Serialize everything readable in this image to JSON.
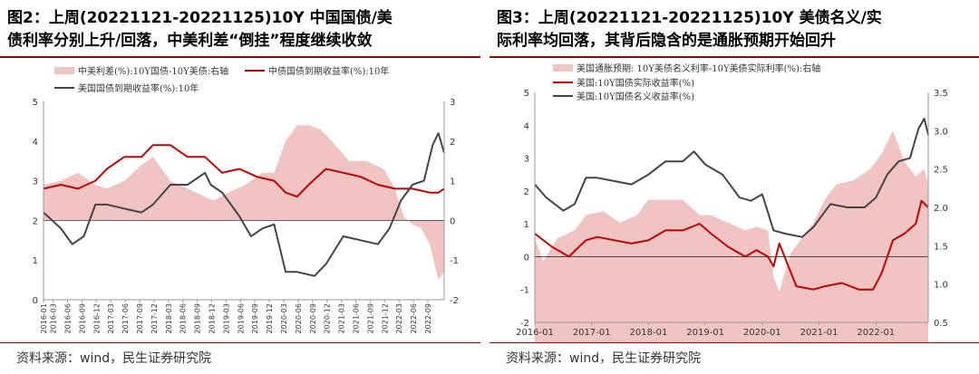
{
  "source": "资料来源：wind，民生证券研究院",
  "colors": {
    "spread": "#f1c4c4",
    "china": "#c00000",
    "us": "#444444",
    "accent": "#a00000"
  },
  "chart_data": [
    {
      "type": "line",
      "title_line1": "图2：上周(20221121-20221125)10Y 中国国债/美",
      "title_line2": "债利率分别上升/回落，中美利差“倒挂”程度继续收敛",
      "ylim_left": [
        0,
        5
      ],
      "yticks_left": [
        "0",
        "1",
        "2",
        "3",
        "4",
        "5"
      ],
      "ylim_right": [
        -2,
        3
      ],
      "yticks_right": [
        "-2",
        "-1",
        "0",
        "1",
        "2",
        "3"
      ],
      "xlim": [
        2016.0,
        2022.95
      ],
      "x_ticks": [
        "2016-01",
        "2016-03",
        "2016-06",
        "2016-09",
        "2016-12",
        "2017-03",
        "2017-06",
        "2017-09",
        "2017-12",
        "2018-03",
        "2018-06",
        "2018-09",
        "2018-12",
        "2019-03",
        "2019-06",
        "2019-09",
        "2019-12",
        "2020-03",
        "2020-06",
        "2020-09",
        "2020-12",
        "2021-03",
        "2021-06",
        "2021-09",
        "2021-12",
        "2022-03",
        "2022-06",
        "2022-09"
      ],
      "legend": [
        "中美利差(%):10Y国债-10Y美债:右轴",
        "中债国债到期收益率(%):10年",
        "美国国债到期收益率(%):10年"
      ],
      "series": [
        {
          "name": "中美利差(%):10Y国债-10Y美债:右轴",
          "axis": "right",
          "kind": "area",
          "x": [
            2016.0,
            2016.3,
            2016.6,
            2016.9,
            2017.1,
            2017.4,
            2017.7,
            2017.9,
            2018.2,
            2018.5,
            2018.8,
            2018.95,
            2019.2,
            2019.5,
            2019.8,
            2020.0,
            2020.2,
            2020.4,
            2020.6,
            2020.8,
            2021.0,
            2021.3,
            2021.6,
            2021.9,
            2022.1,
            2022.25,
            2022.4,
            2022.55,
            2022.7,
            2022.85,
            2022.95
          ],
          "y": [
            0.9,
            1.0,
            1.2,
            0.9,
            0.8,
            1.0,
            1.4,
            1.6,
            1.0,
            0.8,
            0.6,
            0.5,
            0.7,
            0.9,
            1.2,
            1.2,
            2.0,
            2.4,
            2.4,
            2.3,
            2.0,
            1.5,
            1.5,
            1.3,
            0.8,
            0.1,
            -0.1,
            -0.2,
            -0.6,
            -1.5,
            -1.3
          ]
        },
        {
          "name": "中债国债到期收益率(%):10年",
          "axis": "left",
          "x": [
            2016.0,
            2016.3,
            2016.6,
            2016.9,
            2017.1,
            2017.4,
            2017.7,
            2017.9,
            2018.2,
            2018.5,
            2018.8,
            2019.1,
            2019.4,
            2019.7,
            2020.0,
            2020.2,
            2020.4,
            2020.6,
            2020.9,
            2021.2,
            2021.5,
            2021.8,
            2022.1,
            2022.4,
            2022.7,
            2022.85,
            2022.95
          ],
          "y": [
            2.8,
            2.9,
            2.8,
            3.0,
            3.3,
            3.6,
            3.6,
            3.9,
            3.9,
            3.6,
            3.6,
            3.2,
            3.3,
            3.1,
            3.0,
            2.7,
            2.6,
            2.9,
            3.3,
            3.2,
            3.1,
            2.9,
            2.8,
            2.8,
            2.7,
            2.7,
            2.8
          ]
        },
        {
          "name": "美国国债到期收益率(%):10年",
          "axis": "left",
          "x": [
            2016.0,
            2016.3,
            2016.5,
            2016.7,
            2016.9,
            2017.1,
            2017.4,
            2017.7,
            2017.9,
            2018.2,
            2018.5,
            2018.8,
            2018.9,
            2019.1,
            2019.4,
            2019.6,
            2019.8,
            2020.0,
            2020.2,
            2020.4,
            2020.7,
            2020.9,
            2021.2,
            2021.5,
            2021.8,
            2022.0,
            2022.2,
            2022.4,
            2022.6,
            2022.75,
            2022.85,
            2022.95
          ],
          "y": [
            2.2,
            1.8,
            1.4,
            1.6,
            2.4,
            2.4,
            2.3,
            2.2,
            2.4,
            2.9,
            2.9,
            3.2,
            2.9,
            2.7,
            2.1,
            1.6,
            1.8,
            1.9,
            0.7,
            0.7,
            0.6,
            0.9,
            1.6,
            1.5,
            1.4,
            1.8,
            2.5,
            2.9,
            3.0,
            3.9,
            4.2,
            3.7
          ]
        }
      ]
    },
    {
      "type": "line",
      "title_line1": "图3：上周(20221121-20221125)10Y 美债名义/实",
      "title_line2": "际利率均回落，其背后隐含的是通胀预期开始回升",
      "ylim_left": [
        -2,
        5
      ],
      "yticks_left": [
        "-2",
        "-1",
        "0",
        "1",
        "2",
        "3",
        "4",
        "5"
      ],
      "ylim_right": [
        0.5,
        3.5
      ],
      "yticks_right": [
        "0.5",
        "1.0",
        "1.5",
        "2.0",
        "2.5",
        "3.0",
        "3.5"
      ],
      "xlim": [
        2016.0,
        2022.92
      ],
      "x_ticks": [
        "2016-01",
        "2017-01",
        "2018-01",
        "2019-01",
        "2020-01",
        "2021-01",
        "2022-01"
      ],
      "legend": [
        "美国通胀预期:  10Y美债名义利率-10Y美债实际利率(%):右轴",
        "美国:10Y国债实际收益率(%)",
        "美国:10Y国债名义收益率(%)"
      ],
      "series": [
        {
          "name": "美国通胀预期:  10Y美债名义利率-10Y美债实际利率(%):右轴",
          "axis": "right",
          "kind": "area",
          "x": [
            2016.0,
            2016.15,
            2016.4,
            2016.7,
            2016.9,
            2017.2,
            2017.5,
            2017.8,
            2018.0,
            2018.3,
            2018.6,
            2018.9,
            2019.1,
            2019.4,
            2019.7,
            2019.9,
            2020.1,
            2020.2,
            2020.3,
            2020.5,
            2020.7,
            2020.9,
            2021.1,
            2021.3,
            2021.6,
            2021.9,
            2022.1,
            2022.3,
            2022.5,
            2022.7,
            2022.85,
            2022.92
          ],
          "y": [
            1.6,
            1.3,
            1.6,
            1.7,
            1.9,
            1.95,
            1.8,
            1.9,
            2.1,
            2.1,
            2.1,
            1.9,
            1.9,
            1.8,
            1.7,
            1.75,
            1.7,
            1.1,
            0.9,
            1.4,
            1.6,
            1.8,
            2.1,
            2.3,
            2.35,
            2.5,
            2.7,
            3.0,
            2.6,
            2.4,
            2.5,
            2.3
          ]
        },
        {
          "name": "美国:10Y国债实际收益率(%)",
          "axis": "left",
          "x": [
            2016.0,
            2016.3,
            2016.6,
            2016.9,
            2017.1,
            2017.4,
            2017.7,
            2018.0,
            2018.3,
            2018.6,
            2018.9,
            2019.1,
            2019.4,
            2019.7,
            2019.9,
            2020.1,
            2020.2,
            2020.3,
            2020.6,
            2020.9,
            2021.1,
            2021.4,
            2021.7,
            2021.95,
            2022.1,
            2022.3,
            2022.5,
            2022.7,
            2022.8,
            2022.92
          ],
          "y": [
            0.7,
            0.3,
            0.0,
            0.5,
            0.6,
            0.5,
            0.4,
            0.5,
            0.8,
            0.8,
            1.0,
            0.7,
            0.3,
            0.0,
            0.2,
            0.0,
            -0.3,
            0.4,
            -0.9,
            -1.0,
            -0.9,
            -0.8,
            -1.0,
            -1.0,
            -0.5,
            0.5,
            0.7,
            1.0,
            1.7,
            1.5
          ]
        },
        {
          "name": "美国:10Y国债名义收益率(%)",
          "axis": "left",
          "x": [
            2016.0,
            2016.2,
            2016.5,
            2016.7,
            2016.9,
            2017.1,
            2017.4,
            2017.7,
            2018.0,
            2018.3,
            2018.6,
            2018.8,
            2019.0,
            2019.3,
            2019.6,
            2019.8,
            2020.0,
            2020.2,
            2020.4,
            2020.7,
            2020.9,
            2021.2,
            2021.5,
            2021.8,
            2022.0,
            2022.2,
            2022.4,
            2022.6,
            2022.75,
            2022.85,
            2022.92
          ],
          "y": [
            2.2,
            1.8,
            1.4,
            1.6,
            2.4,
            2.4,
            2.3,
            2.2,
            2.5,
            2.9,
            2.9,
            3.2,
            2.8,
            2.5,
            1.8,
            1.7,
            1.9,
            0.8,
            0.7,
            0.6,
            0.9,
            1.6,
            1.5,
            1.5,
            1.8,
            2.5,
            2.9,
            3.0,
            3.9,
            4.2,
            3.7
          ]
        }
      ]
    }
  ]
}
